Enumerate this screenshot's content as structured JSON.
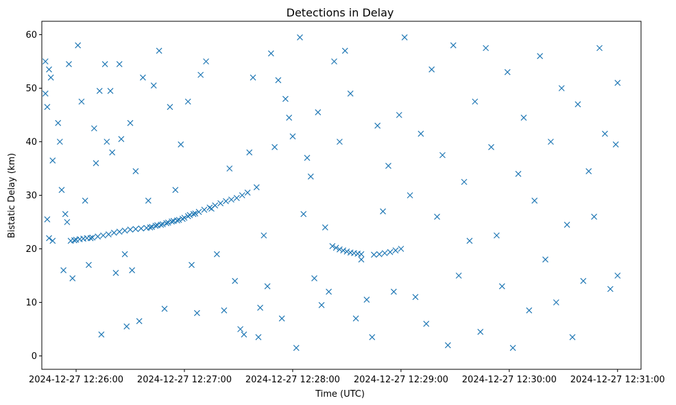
{
  "chart_data": {
    "type": "scatter",
    "title": "Detections in Delay",
    "xlabel": "Time (UTC)",
    "ylabel": "Bistatic Delay (km)",
    "x_tick_labels": [
      "2024-12-27 12:26:00",
      "2024-12-27 12:27:00",
      "2024-12-27 12:28:00",
      "2024-12-27 12:29:00",
      "2024-12-27 12:30:00",
      "2024-12-27 12:31:00"
    ],
    "y_tick_labels": [
      "0",
      "10",
      "20",
      "30",
      "40",
      "50",
      "60"
    ],
    "x_ticks": [
      "12:26:00",
      "12:27:00",
      "12:28:00",
      "12:29:00",
      "12:30:00",
      "12:31:00"
    ],
    "y_ticks": [
      0,
      10,
      20,
      30,
      40,
      50,
      60
    ],
    "xlim": [
      "12:25:41",
      "12:31:13"
    ],
    "ylim": [
      -2.5,
      62.5
    ],
    "marker": "x",
    "color": "#1f77b4",
    "grid": false,
    "series": [
      {
        "x": [
          "12:25:57",
          "12:25:59",
          "12:26:00",
          "12:26:02",
          "12:26:04",
          "12:26:06",
          "12:26:08",
          "12:26:09",
          "12:26:12",
          "12:26:15",
          "12:26:18",
          "12:26:21",
          "12:26:24",
          "12:26:27",
          "12:26:30",
          "12:26:33",
          "12:26:36",
          "12:26:39",
          "12:26:41",
          "12:26:42",
          "12:26:44",
          "12:26:45",
          "12:26:47",
          "12:26:48",
          "12:26:50",
          "12:26:51",
          "12:26:53",
          "12:26:54",
          "12:26:56",
          "12:26:57",
          "12:26:59",
          "12:27:00",
          "12:27:02",
          "12:27:03",
          "12:27:05",
          "12:27:06",
          "12:27:08",
          "12:27:11",
          "12:27:14",
          "12:27:17",
          "12:27:20",
          "12:27:23",
          "12:27:26",
          "12:27:29",
          "12:27:32",
          "12:27:35"
        ],
        "y": [
          21.5,
          21.6,
          21.7,
          21.8,
          21.9,
          22.0,
          22.0,
          22.1,
          22.3,
          22.5,
          22.7,
          23.0,
          23.2,
          23.4,
          23.6,
          23.7,
          23.8,
          23.9,
          24.0,
          24.1,
          24.3,
          24.4,
          24.5,
          24.6,
          24.8,
          24.9,
          25.1,
          25.2,
          25.3,
          25.4,
          25.6,
          25.8,
          26.1,
          26.3,
          26.5,
          26.6,
          26.9,
          27.3,
          27.7,
          28.1,
          28.5,
          28.9,
          29.2,
          29.5,
          30.0,
          30.5
        ]
      },
      {
        "x": [
          "12:28:22",
          "12:28:24",
          "12:28:26",
          "12:28:28",
          "12:28:30",
          "12:28:32",
          "12:28:34",
          "12:28:36",
          "12:28:38",
          "12:28:45",
          "12:28:48",
          "12:28:51",
          "12:28:54",
          "12:28:57",
          "12:29:00"
        ],
        "y": [
          20.5,
          20.2,
          19.9,
          19.7,
          19.5,
          19.3,
          19.2,
          19.1,
          19.0,
          18.9,
          19.0,
          19.2,
          19.4,
          19.7,
          20.0
        ]
      },
      {
        "x": [
          "12:25:43",
          "12:25:43",
          "12:25:44",
          "12:25:44",
          "12:25:45",
          "12:25:45",
          "12:25:46",
          "12:25:47",
          "12:25:47",
          "12:25:50",
          "12:25:51",
          "12:25:52",
          "12:25:53",
          "12:25:54",
          "12:25:55",
          "12:25:56",
          "12:25:58",
          "12:26:01",
          "12:26:03",
          "12:26:05",
          "12:26:07",
          "12:26:10",
          "12:26:11",
          "12:26:13",
          "12:26:14",
          "12:26:16",
          "12:26:17",
          "12:26:19",
          "12:26:20",
          "12:26:22",
          "12:26:24",
          "12:26:25",
          "12:26:27",
          "12:26:28",
          "12:26:30",
          "12:26:31",
          "12:26:33",
          "12:26:35",
          "12:26:37",
          "12:26:40",
          "12:26:43",
          "12:26:46",
          "12:26:49",
          "12:26:52",
          "12:26:55",
          "12:26:58",
          "12:27:02",
          "12:27:04",
          "12:27:07",
          "12:27:09",
          "12:27:12",
          "12:27:15",
          "12:27:18",
          "12:27:22",
          "12:27:25",
          "12:27:28",
          "12:27:31",
          "12:27:33",
          "12:27:36",
          "12:27:38",
          "12:27:40",
          "12:27:41",
          "12:27:42",
          "12:27:44",
          "12:27:46",
          "12:27:48",
          "12:27:50",
          "12:27:52",
          "12:27:54",
          "12:27:56",
          "12:27:58",
          "12:28:00",
          "12:28:02",
          "12:28:04",
          "12:28:06",
          "12:28:08",
          "12:28:10",
          "12:28:12",
          "12:28:14",
          "12:28:16",
          "12:28:18",
          "12:28:20",
          "12:28:23",
          "12:28:26",
          "12:28:29",
          "12:28:32",
          "12:28:35",
          "12:28:38",
          "12:28:41",
          "12:28:44",
          "12:28:47",
          "12:28:50",
          "12:28:53",
          "12:28:56",
          "12:28:59",
          "12:29:02",
          "12:29:05",
          "12:29:08",
          "12:29:11",
          "12:29:14",
          "12:29:17",
          "12:29:20",
          "12:29:23",
          "12:29:26",
          "12:29:29",
          "12:29:32",
          "12:29:35",
          "12:29:38",
          "12:29:41",
          "12:29:44",
          "12:29:47",
          "12:29:50",
          "12:29:53",
          "12:29:56",
          "12:29:59",
          "12:30:02",
          "12:30:05",
          "12:30:08",
          "12:30:11",
          "12:30:14",
          "12:30:17",
          "12:30:20",
          "12:30:23",
          "12:30:26",
          "12:30:29",
          "12:30:32",
          "12:30:35",
          "12:30:38",
          "12:30:41",
          "12:30:44",
          "12:30:47",
          "12:30:50",
          "12:30:53",
          "12:30:56",
          "12:30:59",
          "12:31:00",
          "12:31:00"
        ],
        "y": [
          49,
          55,
          46.5,
          25.5,
          53.5,
          22,
          52,
          21.5,
          36.5,
          43.5,
          40,
          31,
          16,
          26.5,
          25,
          54.5,
          14.5,
          58,
          47.5,
          29,
          17,
          42.5,
          36,
          49.5,
          4,
          54.5,
          40,
          49.5,
          38,
          15.5,
          54.5,
          40.5,
          19,
          5.5,
          43.5,
          16,
          34.5,
          6.5,
          52,
          29,
          50.5,
          57,
          8.8,
          46.5,
          31,
          39.5,
          47.5,
          17,
          8,
          52.5,
          55,
          27.5,
          19,
          8.5,
          35,
          14,
          5,
          4,
          38,
          52,
          31.5,
          3.5,
          9,
          22.5,
          13,
          56.5,
          39,
          51.5,
          7,
          48,
          44.5,
          41,
          1.5,
          59.5,
          26.5,
          37,
          33.5,
          14.5,
          45.5,
          9.5,
          24,
          12,
          55,
          40,
          57,
          49,
          7,
          18,
          10.5,
          3.5,
          43,
          27,
          35.5,
          12,
          45,
          59.5,
          30,
          11,
          41.5,
          6,
          53.5,
          26,
          37.5,
          2,
          58,
          15,
          32.5,
          21.5,
          47.5,
          4.5,
          57.5,
          39,
          22.5,
          13,
          53,
          1.5,
          34,
          44.5,
          8.5,
          29,
          56,
          18,
          40,
          10,
          50,
          24.5,
          3.5,
          47,
          14,
          34.5,
          26,
          57.5,
          41.5,
          12.5,
          39.5,
          51,
          15
        ]
      }
    ]
  }
}
